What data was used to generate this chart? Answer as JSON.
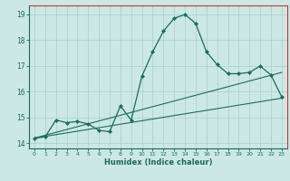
{
  "title": "",
  "xlabel": "Humidex (Indice chaleur)",
  "ylabel": "",
  "xlim": [
    -0.5,
    23.5
  ],
  "ylim": [
    13.8,
    19.35
  ],
  "yticks": [
    14,
    15,
    16,
    17,
    18,
    19
  ],
  "xticks": [
    0,
    1,
    2,
    3,
    4,
    5,
    6,
    7,
    8,
    9,
    10,
    11,
    12,
    13,
    14,
    15,
    16,
    17,
    18,
    19,
    20,
    21,
    22,
    23
  ],
  "bg_color": "#cce8e4",
  "line_color": "#1a6b5e",
  "grid_color": "#aacfcc",
  "spine_top_color": "#cc3333",
  "spine_right_color": "#cc3333",
  "line1_x": [
    0,
    1,
    2,
    3,
    4,
    5,
    6,
    7,
    8,
    9,
    10,
    11,
    12,
    13,
    14,
    15,
    16,
    17,
    18,
    19,
    20,
    21,
    22,
    23
  ],
  "line1_y": [
    14.2,
    14.25,
    14.9,
    14.8,
    14.85,
    14.75,
    14.5,
    14.45,
    15.45,
    14.9,
    16.6,
    17.55,
    18.35,
    18.85,
    19.0,
    18.65,
    17.55,
    17.05,
    16.7,
    16.7,
    16.75,
    17.0,
    16.65,
    15.8
  ],
  "line2_x": [
    0,
    23
  ],
  "line2_y": [
    14.2,
    16.75
  ],
  "line3_x": [
    0,
    23
  ],
  "line3_y": [
    14.2,
    15.75
  ],
  "figsize": [
    3.2,
    2.0
  ],
  "dpi": 100
}
